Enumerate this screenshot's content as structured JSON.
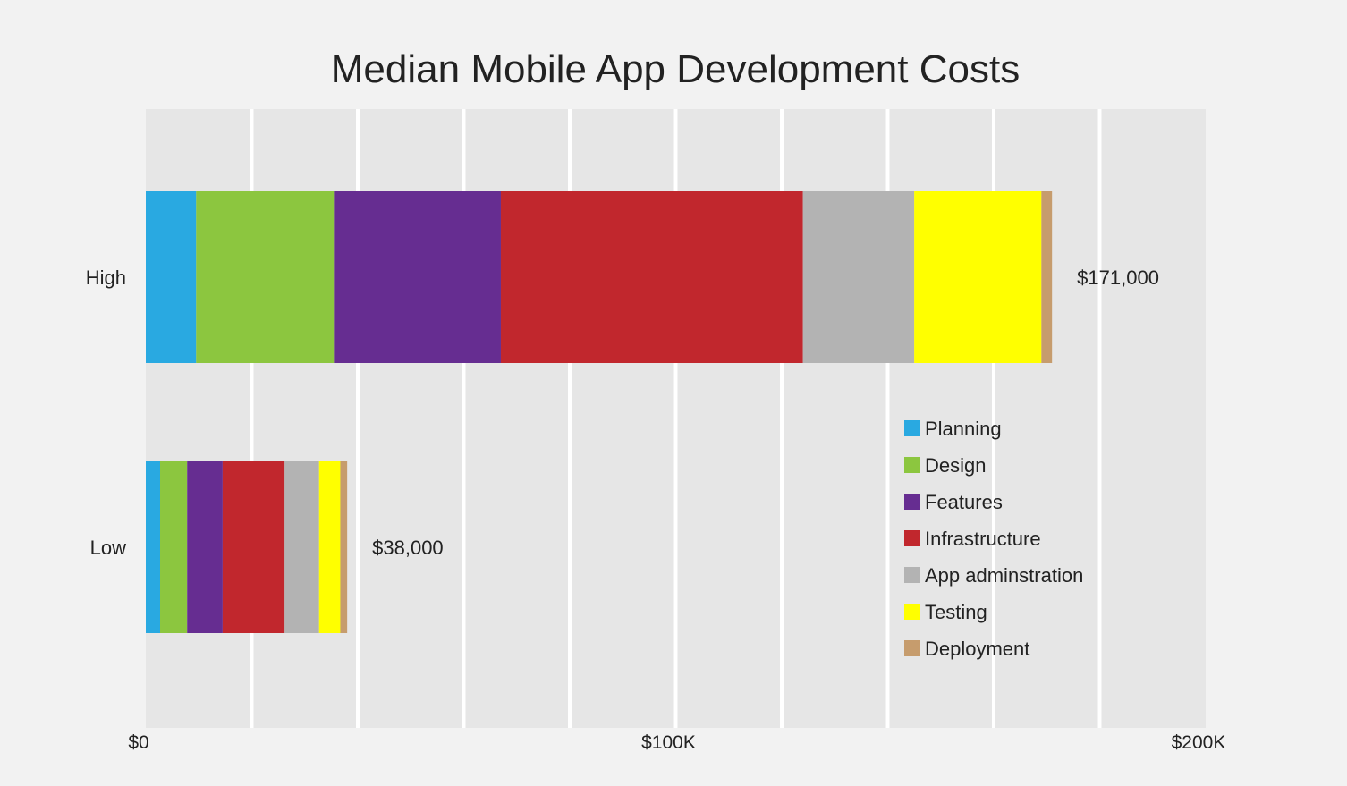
{
  "chart_data": {
    "type": "bar",
    "orientation": "horizontal",
    "stacked": true,
    "title": "Median Mobile App Development Costs",
    "xlabel": "",
    "ylabel": "",
    "xlim": [
      0,
      200000
    ],
    "x_ticks": [
      {
        "value": 0,
        "label": "$0"
      },
      {
        "value": 100000,
        "label": "$100K"
      },
      {
        "value": 200000,
        "label": "$200K"
      }
    ],
    "gridlines": [
      0,
      20000,
      40000,
      60000,
      80000,
      100000,
      120000,
      140000,
      160000,
      180000,
      200000
    ],
    "categories": [
      "High",
      "Low"
    ],
    "totals": [
      {
        "value": 171000,
        "label": "$171,000"
      },
      {
        "value": 38000,
        "label": "$38,000"
      }
    ],
    "series": [
      {
        "name": "Planning",
        "color": "#29a9e1",
        "values": [
          9500,
          2700
        ]
      },
      {
        "name": "Design",
        "color": "#8cc63f",
        "values": [
          26000,
          5100
        ]
      },
      {
        "name": "Features",
        "color": "#662d91",
        "values": [
          31500,
          6700
        ]
      },
      {
        "name": "Infrastructure",
        "color": "#c1272d",
        "values": [
          57000,
          11700
        ]
      },
      {
        "name": "App adminstration",
        "color": "#b3b3b3",
        "values": [
          21000,
          6500
        ]
      },
      {
        "name": "Testing",
        "color": "#ffff00",
        "values": [
          24000,
          4000
        ]
      },
      {
        "name": "Deployment",
        "color": "#c69c6d",
        "values": [
          2000,
          1300
        ]
      }
    ],
    "legend_position": "lower-right",
    "grid": true
  }
}
